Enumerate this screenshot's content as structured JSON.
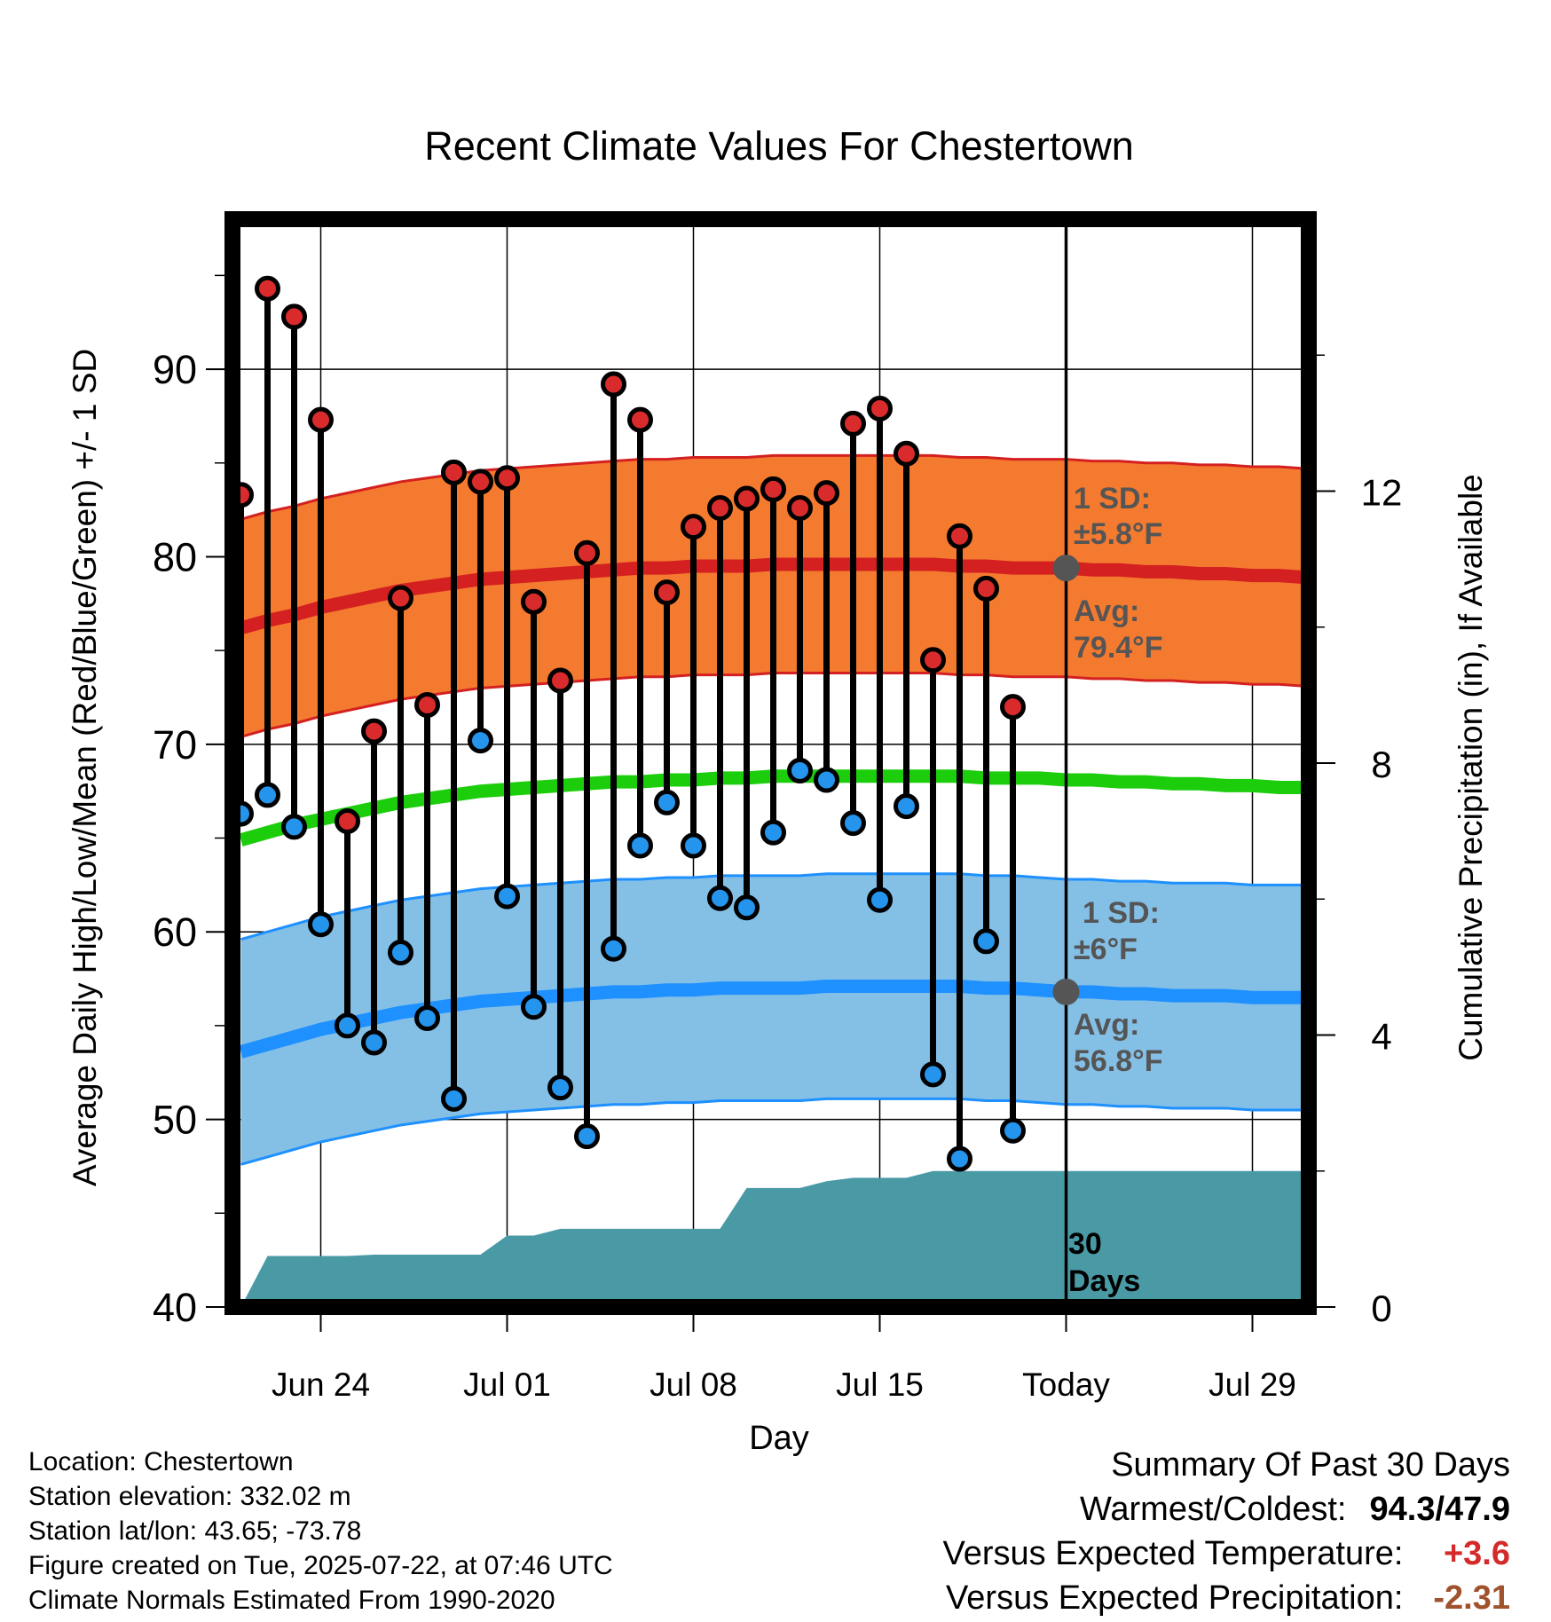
{
  "chart_data": {
    "type": "line",
    "title": "Recent Climate Values For Chestertown",
    "xlabel": "Day",
    "ylabel": "Average Daily High/Low/Mean (Red/Blue/Green) +/- 1 SD",
    "y2label": "Cumulative Precipitation (in), If Available",
    "ylim": [
      40,
      98
    ],
    "y2lim": [
      0,
      16
    ],
    "yticks": [
      "40",
      "50",
      "60",
      "70",
      "80",
      "90"
    ],
    "y2ticks": [
      "0",
      "4",
      "8",
      "12"
    ],
    "xlim": [
      "Jun 20",
      "Aug 02"
    ],
    "xticks": [
      "Jun 24",
      "Jul 01",
      "Jul 08",
      "Jul 15",
      "Today",
      "Jul 29"
    ],
    "grid": true,
    "colors": {
      "high_band": "#f47a30",
      "high_line": "#d42020",
      "low_band": "#84c0e6",
      "low_line": "#1e90ff",
      "mean_line": "#1ccd0c",
      "precip": "#4a9aa6",
      "high_dot": "#d92b2b",
      "low_dot": "#2494ec",
      "marker": "#555555",
      "annotation": "#555555"
    },
    "days": [
      "Jun 21",
      "Jun 22",
      "Jun 23",
      "Jun 24",
      "Jun 25",
      "Jun 26",
      "Jun 27",
      "Jun 28",
      "Jun 29",
      "Jun 30",
      "Jul 01",
      "Jul 02",
      "Jul 03",
      "Jul 04",
      "Jul 05",
      "Jul 06",
      "Jul 07",
      "Jul 08",
      "Jul 09",
      "Jul 10",
      "Jul 11",
      "Jul 12",
      "Jul 13",
      "Jul 14",
      "Jul 15",
      "Jul 16",
      "Jul 17",
      "Jul 18",
      "Jul 19",
      "Jul 20",
      "Jul 21"
    ],
    "observed_high": [
      83.3,
      94.3,
      92.8,
      87.3,
      65.9,
      70.7,
      77.8,
      72.1,
      84.5,
      84.0,
      84.2,
      77.6,
      73.4,
      80.2,
      89.2,
      87.3,
      78.1,
      81.6,
      82.6,
      83.1,
      83.6,
      82.6,
      83.4,
      87.1,
      87.9,
      85.5,
      74.5,
      81.1,
      78.3,
      72.0,
      null
    ],
    "observed_low": [
      66.3,
      67.3,
      65.6,
      60.4,
      55.0,
      54.1,
      58.9,
      55.4,
      51.1,
      70.2,
      61.9,
      56.0,
      51.7,
      49.1,
      59.1,
      64.6,
      66.9,
      64.6,
      61.8,
      61.3,
      65.3,
      68.6,
      68.1,
      65.8,
      61.7,
      66.7,
      52.4,
      47.9,
      59.5,
      49.4,
      null
    ],
    "normal_high": [
      76.2,
      76.6,
      76.9,
      77.3,
      77.6,
      77.9,
      78.2,
      78.4,
      78.6,
      78.8,
      78.9,
      79.0,
      79.1,
      79.2,
      79.3,
      79.4,
      79.4,
      79.5,
      79.5,
      79.5,
      79.6,
      79.6,
      79.6,
      79.6,
      79.6,
      79.6,
      79.6,
      79.5,
      79.5,
      79.4,
      79.4,
      79.4,
      79.3,
      79.3,
      79.2,
      79.2,
      79.1,
      79.1,
      79.0,
      79.0,
      78.9,
      78.9
    ],
    "normal_low": [
      53.6,
      54.0,
      54.4,
      54.8,
      55.1,
      55.4,
      55.7,
      55.9,
      56.1,
      56.3,
      56.4,
      56.5,
      56.6,
      56.7,
      56.8,
      56.8,
      56.9,
      56.9,
      57.0,
      57.0,
      57.0,
      57.0,
      57.1,
      57.1,
      57.1,
      57.1,
      57.1,
      57.1,
      57.0,
      57.0,
      56.9,
      56.8,
      56.8,
      56.7,
      56.7,
      56.6,
      56.6,
      56.6,
      56.5,
      56.5,
      56.5,
      56.4
    ],
    "normal_mean": [
      64.9,
      65.3,
      65.7,
      66.0,
      66.3,
      66.6,
      66.9,
      67.1,
      67.3,
      67.5,
      67.6,
      67.7,
      67.8,
      67.9,
      68.0,
      68.0,
      68.1,
      68.1,
      68.2,
      68.2,
      68.3,
      68.3,
      68.3,
      68.3,
      68.3,
      68.3,
      68.3,
      68.3,
      68.2,
      68.2,
      68.2,
      68.1,
      68.1,
      68.0,
      68.0,
      67.9,
      67.9,
      67.8,
      67.8,
      67.7,
      67.7,
      67.6
    ],
    "high_sd": 5.8,
    "low_sd": 6.0,
    "cumulative_precip": [
      0.0,
      0.75,
      0.75,
      0.75,
      0.75,
      0.77,
      0.77,
      0.77,
      0.77,
      0.77,
      1.05,
      1.05,
      1.15,
      1.15,
      1.15,
      1.15,
      1.15,
      1.15,
      1.15,
      1.75,
      1.75,
      1.75,
      1.85,
      1.9,
      1.9,
      1.9,
      2.0,
      2.0,
      2.0,
      2.0,
      2.0,
      2.0,
      2.0,
      2.0,
      2.0,
      2.0,
      2.0,
      2.0,
      2.0,
      2.0,
      2.0,
      2.0
    ],
    "annotations": {
      "high_sd_line1": "1 SD:",
      "high_sd_line2": "±5.8°F",
      "high_avg_line1": "Avg:",
      "high_avg_line2": "79.4°F",
      "low_sd_line1": "1 SD:",
      "low_sd_line2": "±6°F",
      "low_avg_line1": "Avg:",
      "low_avg_line2": "56.8°F",
      "precip_line1": "30",
      "precip_line2": "Days"
    },
    "today_high_avg": 79.4,
    "today_low_avg": 56.8
  },
  "footer": {
    "location": "Location: Chestertown",
    "elevation": "Station elevation: 332.02 m",
    "latlon": "Station lat/lon: 43.65; -73.78",
    "created": "Figure created on Tue, 2025-07-22, at 07:46 UTC",
    "normals": "Climate Normals Estimated From 1990-2020"
  },
  "summary": {
    "title": "Summary Of Past 30 Days",
    "warm_cold_label": "Warmest/Coldest:",
    "warmest": "94.3",
    "sep": "/",
    "coldest": "47.9",
    "temp_label": "Versus Expected Temperature:",
    "temp_value": "+3.6",
    "temp_color": "#d42a2a",
    "precip_label": "Versus Expected Precipitation:",
    "precip_value": "-2.31",
    "precip_color": "#a0522d"
  }
}
